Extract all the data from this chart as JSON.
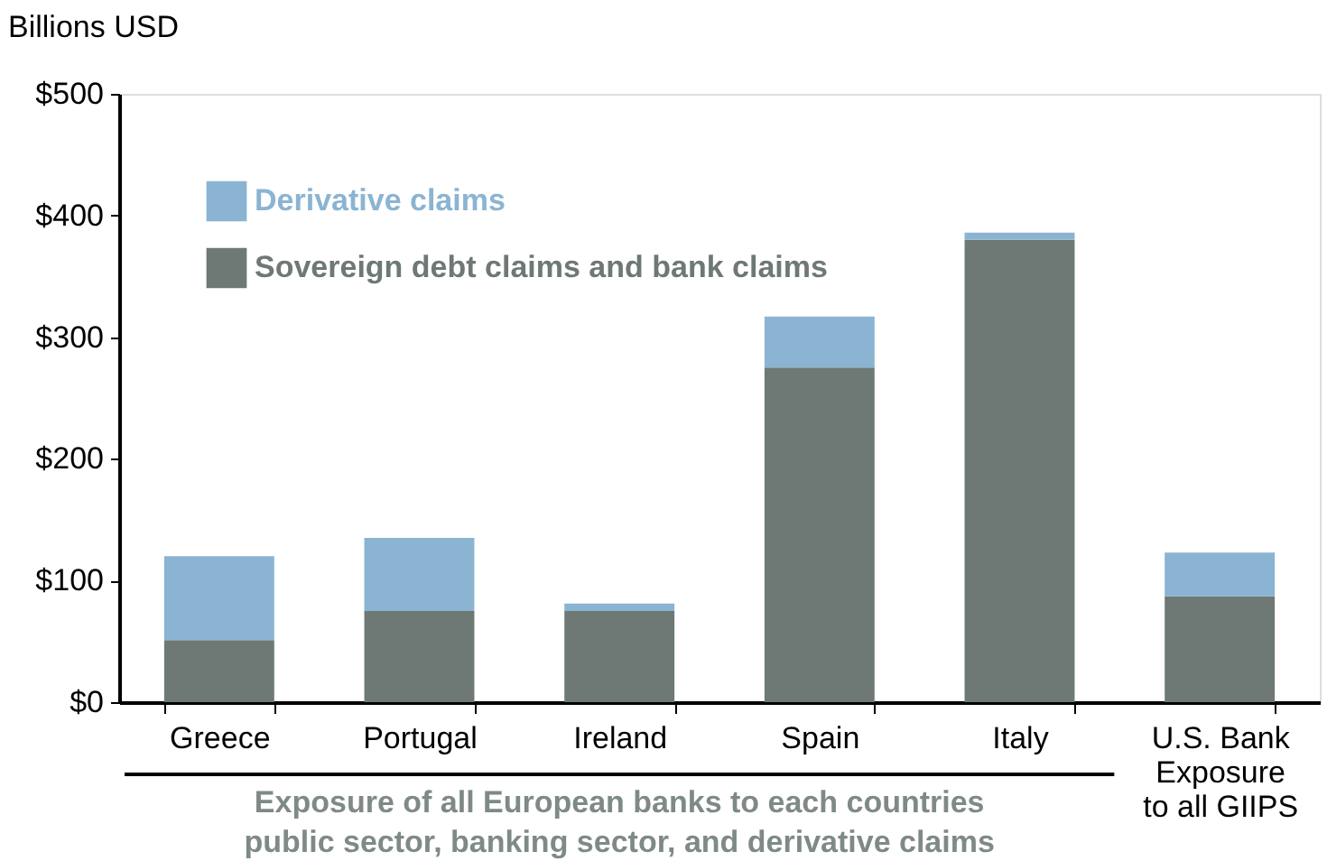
{
  "chart_data": {
    "type": "bar",
    "stacked": true,
    "ylabel": "Billions USD",
    "categories": [
      "Greece",
      "Portugal",
      "Ireland",
      "Spain",
      "Italy",
      "U.S. Bank\nExposure\nto all GIIPS"
    ],
    "series": [
      {
        "name": "Sovereign debt claims and bank claims",
        "color": "#6e7874",
        "values": [
          51,
          75,
          75,
          275,
          380,
          87
        ]
      },
      {
        "name": "Derivative claims",
        "color": "#8ab4d2",
        "values": [
          69,
          60,
          6,
          42,
          6,
          36
        ]
      }
    ],
    "ylim": [
      0,
      500
    ],
    "yticks": [
      {
        "value": 0,
        "label": "$0"
      },
      {
        "value": 100,
        "label": "$100"
      },
      {
        "value": 200,
        "label": "$200"
      },
      {
        "value": 300,
        "label": "$300"
      },
      {
        "value": 400,
        "label": "$400"
      },
      {
        "value": 500,
        "label": "$500"
      }
    ],
    "grid": false,
    "legend": "top left",
    "annotations": [
      "Exposure of all European banks to each countries\npublic sector, banking sector, and derivative claims"
    ]
  }
}
